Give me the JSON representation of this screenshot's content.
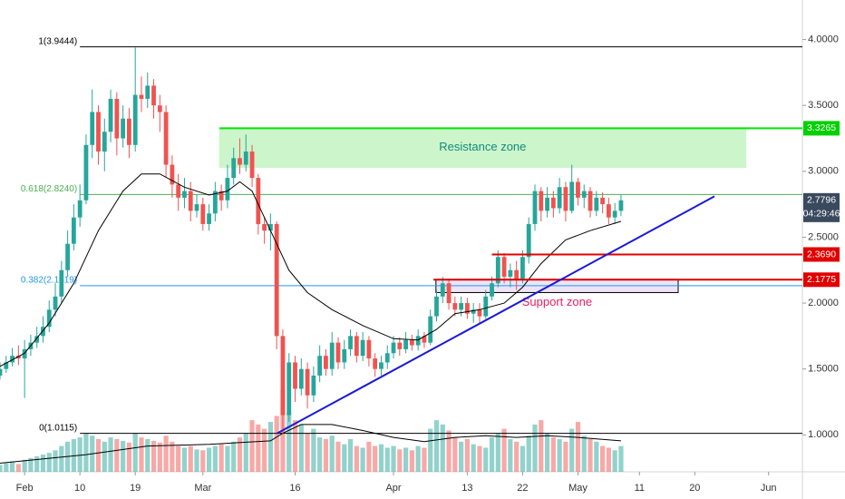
{
  "chart_data": {
    "type": "candlestick",
    "up_color": "#26a69a",
    "down_color": "#ef5350",
    "xlim": [
      -4,
      126.5
    ],
    "ylim": [
      0.72,
      4.3
    ],
    "yticks": [
      {
        "value": 1,
        "label": "1.0000"
      },
      {
        "value": 1.5,
        "label": "1.5000"
      },
      {
        "value": 2,
        "label": "2.0000"
      },
      {
        "value": 2.5,
        "label": "2.5000"
      },
      {
        "value": 3,
        "label": "3.0000"
      },
      {
        "value": 3.5,
        "label": "3.5000"
      },
      {
        "value": 4,
        "label": "4.0000"
      }
    ],
    "xticks": [
      {
        "value": 0,
        "label": "Feb"
      },
      {
        "value": 9,
        "label": "10"
      },
      {
        "value": 18,
        "label": "19"
      },
      {
        "value": 29,
        "label": "Mar"
      },
      {
        "value": 44,
        "label": "16"
      },
      {
        "value": 60,
        "label": "Apr"
      },
      {
        "value": 72,
        "label": "13"
      },
      {
        "value": 81,
        "label": "22"
      },
      {
        "value": 90,
        "label": "May"
      },
      {
        "value": 100,
        "label": "11"
      },
      {
        "value": 109,
        "label": "20"
      },
      {
        "value": 121,
        "label": "Jun"
      }
    ],
    "x": [
      -4,
      -3,
      -2,
      -1,
      0,
      1,
      2,
      3,
      4,
      5,
      6,
      7,
      8,
      9,
      10,
      11,
      12,
      13,
      14,
      15,
      16,
      17,
      18,
      19,
      20,
      21,
      22,
      23,
      24,
      25,
      26,
      27,
      28,
      29,
      30,
      31,
      32,
      33,
      34,
      35,
      36,
      37,
      38,
      39,
      40,
      41,
      42,
      43,
      44,
      45,
      46,
      47,
      48,
      49,
      50,
      51,
      52,
      53,
      54,
      55,
      56,
      57,
      58,
      59,
      60,
      61,
      62,
      63,
      64,
      65,
      66,
      67,
      68,
      69,
      70,
      71,
      72,
      73,
      74,
      75,
      76,
      77,
      78,
      79,
      80,
      81,
      82,
      83,
      84,
      85,
      86,
      87,
      88,
      89,
      90,
      91,
      92,
      93,
      94,
      95,
      96,
      97
    ],
    "open": [
      1.45,
      1.5,
      1.55,
      1.6,
      1.58,
      1.65,
      1.7,
      1.75,
      1.82,
      1.95,
      2.05,
      2.25,
      2.45,
      2.65,
      2.78,
      3.2,
      3.45,
      3.15,
      3.3,
      3.55,
      3.25,
      3.4,
      3.2,
      3.58,
      3.55,
      3.65,
      3.5,
      3.45,
      3.05,
      2.9,
      2.8,
      2.85,
      2.7,
      2.75,
      2.6,
      2.68,
      2.85,
      2.78,
      2.95,
      3.1,
      3.05,
      3.15,
      2.95,
      2.6,
      2.55,
      2.6,
      1.75,
      1.15,
      1.55,
      1.35,
      1.5,
      1.3,
      1.45,
      1.6,
      1.5,
      1.7,
      1.55,
      1.65,
      1.75,
      1.6,
      1.72,
      1.58,
      1.5,
      1.55,
      1.62,
      1.7,
      1.65,
      1.72,
      1.68,
      1.75,
      1.7,
      1.9,
      2.05,
      2.15,
      2.0,
      1.95,
      2.0,
      1.92,
      1.95,
      1.9,
      2.05,
      2.15,
      2.35,
      2.2,
      2.25,
      2.18,
      2.35,
      2.6,
      2.85,
      2.7,
      2.8,
      2.72,
      2.88,
      2.7,
      2.92,
      2.8,
      2.85,
      2.7,
      2.8,
      2.75,
      2.65,
      2.7
    ],
    "high": [
      1.55,
      1.6,
      1.66,
      1.68,
      1.72,
      1.76,
      1.82,
      1.9,
      2.02,
      2.15,
      2.32,
      2.55,
      2.75,
      2.9,
      3.28,
      3.62,
      3.5,
      3.4,
      3.62,
      3.6,
      3.5,
      3.48,
      3.94,
      3.72,
      3.75,
      3.7,
      3.58,
      3.5,
      3.12,
      2.98,
      2.95,
      2.92,
      2.82,
      2.8,
      2.75,
      2.92,
      2.9,
      3.05,
      3.18,
      3.25,
      3.28,
      3.2,
      2.98,
      2.65,
      2.68,
      2.62,
      1.8,
      1.62,
      1.6,
      1.58,
      1.55,
      1.52,
      1.68,
      1.65,
      1.78,
      1.74,
      1.72,
      1.8,
      1.78,
      1.78,
      1.75,
      1.62,
      1.6,
      1.68,
      1.75,
      1.74,
      1.78,
      1.76,
      1.8,
      1.78,
      1.95,
      2.1,
      2.2,
      2.18,
      2.05,
      2.05,
      2.04,
      2.0,
      2.0,
      2.1,
      2.2,
      2.4,
      2.38,
      2.3,
      2.32,
      2.4,
      2.65,
      2.9,
      2.88,
      2.88,
      2.85,
      2.95,
      2.92,
      3.05,
      2.95,
      2.9,
      2.88,
      2.85,
      2.84,
      2.8,
      2.76,
      2.82
    ],
    "low": [
      1.42,
      1.47,
      1.52,
      1.53,
      1.28,
      1.6,
      1.66,
      1.7,
      1.78,
      1.9,
      2.0,
      2.2,
      2.4,
      2.58,
      2.75,
      3.1,
      3.05,
      3.0,
      3.22,
      3.12,
      3.18,
      3.1,
      3.15,
      3.45,
      3.48,
      3.4,
      3.3,
      2.95,
      2.8,
      2.7,
      2.72,
      2.62,
      2.65,
      2.55,
      2.55,
      2.62,
      2.7,
      2.72,
      2.9,
      2.98,
      3.0,
      2.88,
      2.52,
      2.45,
      2.4,
      1.65,
      1.01,
      1.1,
      1.25,
      1.3,
      1.2,
      1.25,
      1.4,
      1.45,
      1.45,
      1.5,
      1.5,
      1.6,
      1.55,
      1.56,
      1.52,
      1.44,
      1.45,
      1.5,
      1.58,
      1.6,
      1.62,
      1.64,
      1.64,
      1.66,
      1.68,
      1.86,
      2.0,
      1.95,
      1.9,
      1.9,
      1.88,
      1.85,
      1.84,
      1.88,
      2.02,
      2.12,
      2.15,
      2.12,
      2.1,
      2.15,
      2.3,
      2.55,
      2.62,
      2.65,
      2.65,
      2.68,
      2.62,
      2.68,
      2.74,
      2.72,
      2.65,
      2.66,
      2.68,
      2.6,
      2.6,
      2.66
    ],
    "close": [
      1.5,
      1.55,
      1.6,
      1.58,
      1.65,
      1.7,
      1.75,
      1.82,
      1.95,
      2.05,
      2.25,
      2.45,
      2.65,
      2.78,
      3.2,
      3.45,
      3.15,
      3.3,
      3.55,
      3.25,
      3.4,
      3.2,
      3.58,
      3.55,
      3.65,
      3.5,
      3.45,
      3.05,
      2.9,
      2.8,
      2.85,
      2.7,
      2.75,
      2.6,
      2.68,
      2.85,
      2.78,
      2.95,
      3.1,
      3.05,
      3.15,
      2.95,
      2.6,
      2.55,
      2.6,
      1.75,
      1.15,
      1.55,
      1.35,
      1.5,
      1.3,
      1.45,
      1.6,
      1.5,
      1.7,
      1.55,
      1.65,
      1.75,
      1.6,
      1.72,
      1.58,
      1.5,
      1.55,
      1.62,
      1.7,
      1.65,
      1.72,
      1.68,
      1.75,
      1.7,
      1.9,
      2.05,
      2.15,
      2.0,
      1.95,
      2.0,
      1.92,
      1.95,
      1.9,
      2.05,
      2.15,
      2.35,
      2.2,
      2.25,
      2.18,
      2.35,
      2.6,
      2.85,
      2.7,
      2.8,
      2.72,
      2.88,
      2.7,
      2.92,
      2.8,
      2.85,
      2.7,
      2.8,
      2.75,
      2.65,
      2.7,
      2.78
    ],
    "volume": [
      8,
      10,
      12,
      9,
      14,
      16,
      18,
      20,
      22,
      25,
      30,
      35,
      38,
      40,
      45,
      42,
      38,
      35,
      40,
      38,
      36,
      34,
      45,
      40,
      38,
      36,
      34,
      42,
      35,
      30,
      28,
      30,
      26,
      25,
      28,
      30,
      32,
      30,
      35,
      40,
      45,
      60,
      55,
      50,
      58,
      65,
      95,
      70,
      60,
      55,
      45,
      50,
      40,
      38,
      42,
      35,
      32,
      38,
      30,
      28,
      35,
      30,
      32,
      28,
      30,
      26,
      28,
      25,
      30,
      28,
      50,
      60,
      55,
      48,
      40,
      35,
      38,
      32,
      30,
      28,
      40,
      45,
      50,
      38,
      35,
      30,
      42,
      55,
      60,
      45,
      40,
      38,
      35,
      50,
      58,
      42,
      38,
      35,
      30,
      28,
      25,
      30
    ],
    "ma": {
      "color": "#000000",
      "x": [
        -4,
        0,
        4,
        8,
        12,
        16,
        19,
        22,
        26,
        30,
        33,
        35,
        37,
        39,
        41,
        43,
        46,
        50,
        55,
        60,
        64,
        67,
        70,
        74,
        78,
        81,
        84,
        88,
        92,
        97
      ],
      "values": [
        1.52,
        1.62,
        1.85,
        2.15,
        2.55,
        2.85,
        2.98,
        2.98,
        2.88,
        2.82,
        2.85,
        2.92,
        2.85,
        2.65,
        2.45,
        2.25,
        2.08,
        1.95,
        1.83,
        1.73,
        1.72,
        1.8,
        1.92,
        1.95,
        2.0,
        2.12,
        2.3,
        2.48,
        2.55,
        2.62
      ]
    },
    "volume_ma": {
      "color": "#000000",
      "x": [
        -4,
        10,
        20,
        30,
        40,
        42,
        45,
        50,
        55,
        60,
        65,
        70,
        75,
        80,
        85,
        90,
        97
      ],
      "values": [
        10,
        20,
        30,
        32,
        36,
        45,
        55,
        55,
        48,
        40,
        35,
        40,
        42,
        40,
        42,
        40,
        36
      ]
    },
    "fib_levels": [
      {
        "label": "1(3.9444)",
        "value": 3.9444,
        "color": "#000000",
        "from": 9
      },
      {
        "label": "0.618(2.8240)",
        "value": 2.824,
        "color": "#4caf50",
        "from": 9
      },
      {
        "label": "0.382(2.1319)",
        "value": 2.1319,
        "color": "#2196f3",
        "from": 9
      },
      {
        "label": "0(1.0115)",
        "value": 1.0115,
        "color": "#000000",
        "from": 9
      }
    ],
    "hlines": [
      {
        "value": 3.3265,
        "color": "#00e600",
        "from": 31.7
      },
      {
        "value": 2.369,
        "color": "#e00000",
        "from": 76
      },
      {
        "value": 2.1775,
        "color": "#e00000",
        "from": 66.5
      }
    ],
    "zones": [
      {
        "label": "Resistance zone",
        "x": [
          31.7,
          117.3
        ],
        "y": [
          3.03,
          3.33
        ],
        "fill": "#ccf5cc",
        "stroke": "#ccf5cc",
        "text_color": "#138a7a"
      },
      {
        "label": "Support zone",
        "x": [
          66.9,
          106.3
        ],
        "y": [
          2.08,
          2.18
        ],
        "fill": "#ede4f5",
        "stroke": "#000000",
        "text_color": "#e91e63"
      }
    ],
    "trendline": {
      "x": [
        41,
        112.2
      ],
      "y": [
        1.01,
        2.81
      ],
      "color": "#1a1ad6"
    },
    "price_labels": [
      {
        "value": 3.3265,
        "label": "3.3265",
        "color": "#00d100"
      },
      {
        "value": 2.7796,
        "label": "2.7796",
        "color": "#3a4a5e",
        "countdown": "04:29:46"
      },
      {
        "value": 2.369,
        "label": "2.3690",
        "color": "#e00000"
      },
      {
        "value": 2.1775,
        "label": "2.1775",
        "color": "#e00000"
      }
    ]
  }
}
